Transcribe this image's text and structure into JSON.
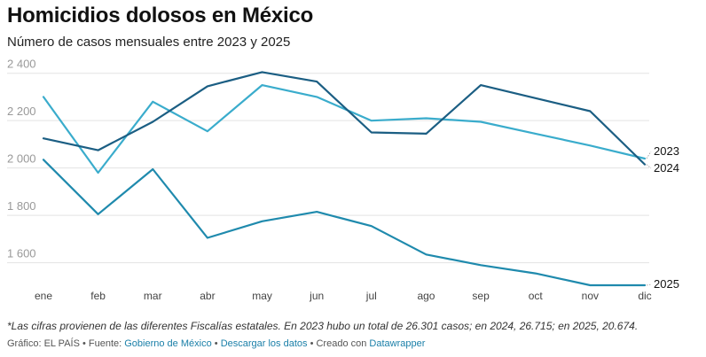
{
  "title": "Homicidios dolosos en México",
  "subtitle": "Número de casos mensuales entre 2023 y 2025",
  "note": "*Las cifras provienen de las diferentes Fiscalías estatales. En 2023 hubo un total de 26.301 casos; en 2024, 26.715; en 2025, 20.674.",
  "footer": {
    "prefix": "Gráfico: EL PAÍS • Fuente:",
    "source_link": "Gobierno de México",
    "sep1": "•",
    "download_link": "Descargar los datos",
    "created_text": "• Creado con",
    "datawrapper_link": "Datawrapper"
  },
  "chart_data": {
    "type": "line",
    "categories": [
      "ene",
      "feb",
      "mar",
      "abr",
      "may",
      "jun",
      "jul",
      "ago",
      "sep",
      "oct",
      "nov",
      "dic"
    ],
    "y_ticks": [
      1600,
      1800,
      2000,
      2200,
      2400
    ],
    "y_tick_labels": [
      "1 600",
      "1 800",
      "2 000",
      "2 200",
      "2 400"
    ],
    "ylim": [
      1520,
      2440
    ],
    "grid": true,
    "series": [
      {
        "name": "2023",
        "color": "#3aaccc",
        "values": [
          2300,
          1980,
          2280,
          2155,
          2350,
          2300,
          2200,
          2210,
          2195,
          2145,
          2095,
          2040
        ]
      },
      {
        "name": "2024",
        "color": "#1b5e83",
        "values": [
          2125,
          2075,
          2195,
          2345,
          2405,
          2365,
          2150,
          2145,
          2350,
          2295,
          2240,
          2015
        ]
      },
      {
        "name": "2025",
        "color": "#1f8aad",
        "values": [
          2035,
          1805,
          1995,
          1705,
          1775,
          1815,
          1755,
          1635,
          1590,
          1555,
          1505,
          1505
        ]
      }
    ]
  }
}
